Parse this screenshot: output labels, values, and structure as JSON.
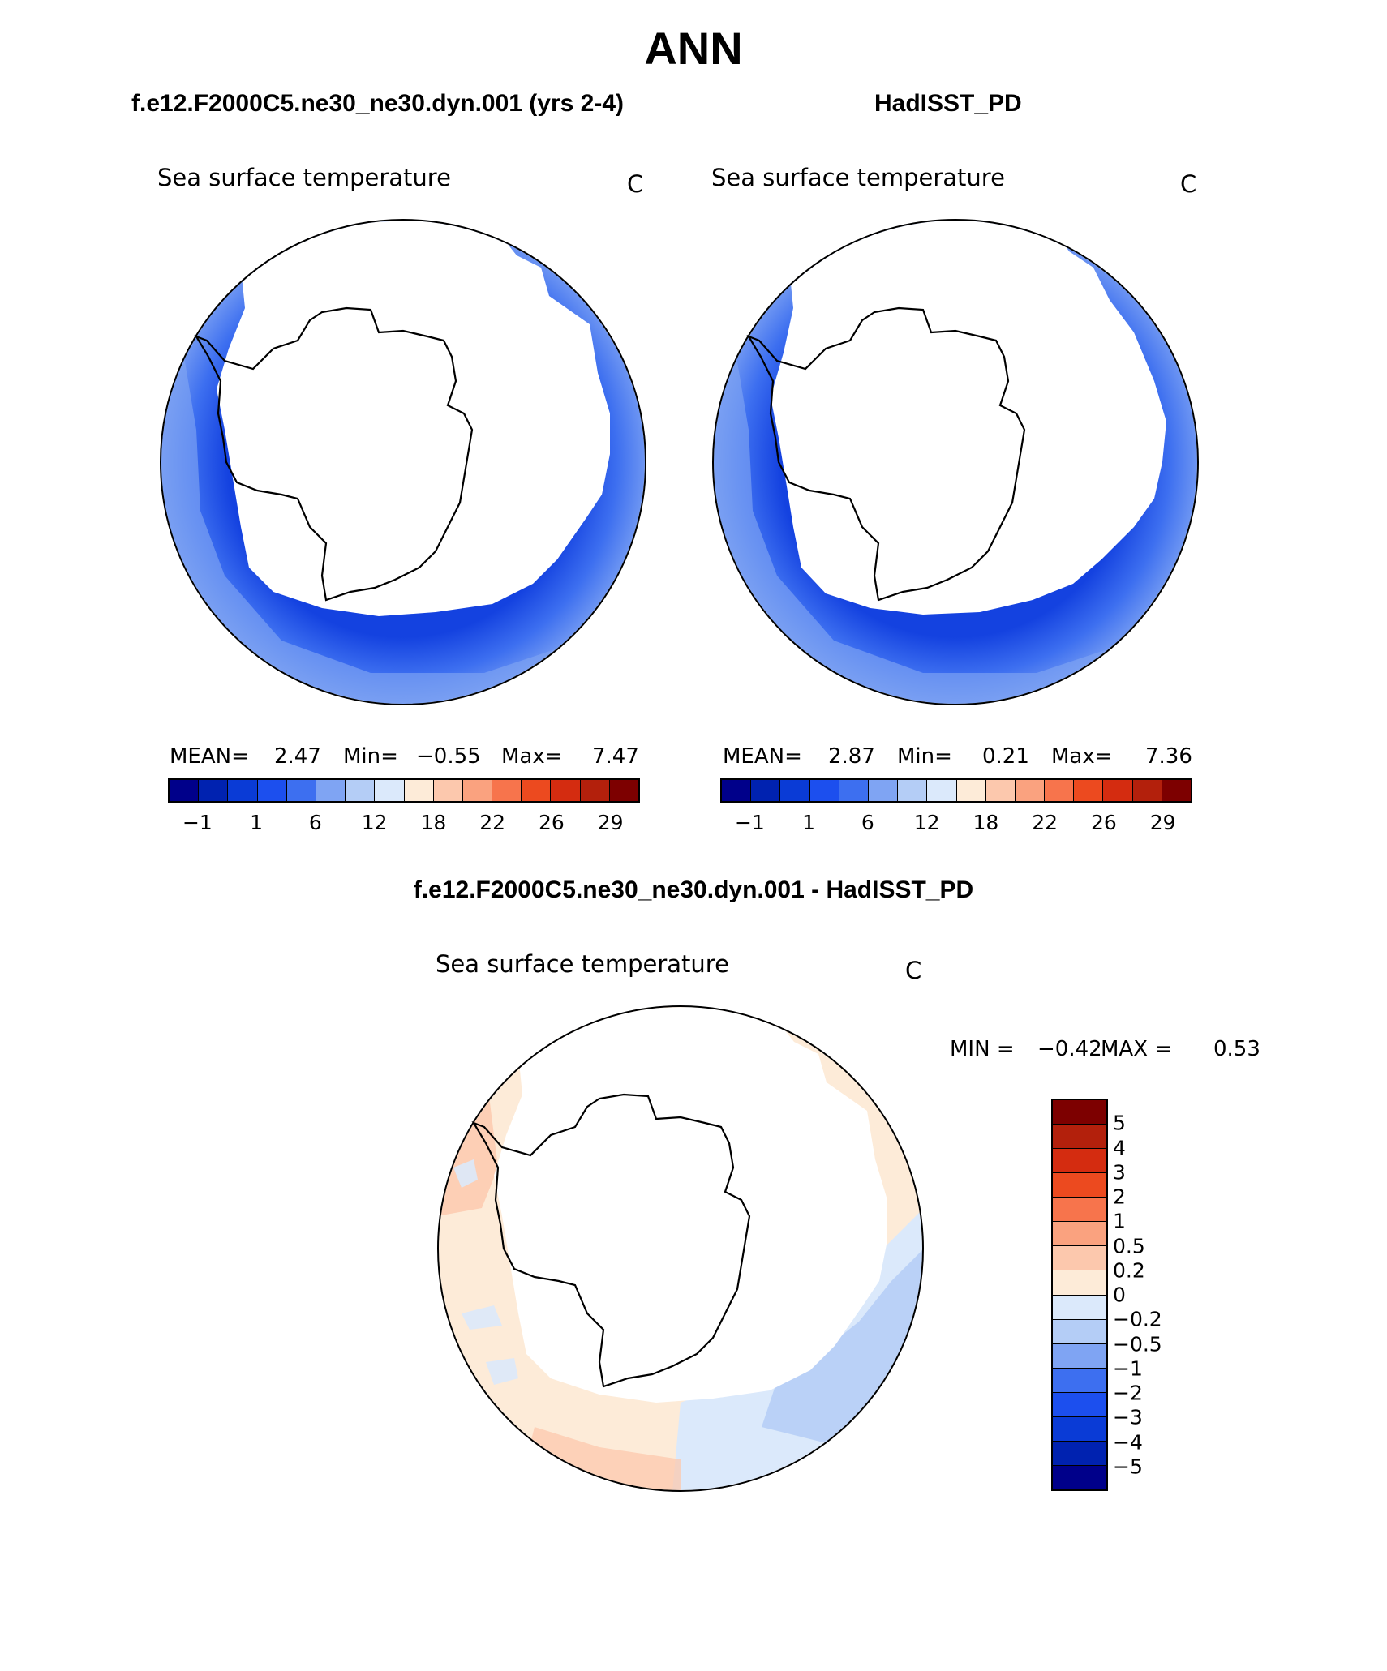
{
  "figure": {
    "title": "ANN"
  },
  "panels": [
    {
      "case_title": "f.e12.F2000C5.ne30_ne30.dyn.001 (yrs 2-4)",
      "label": "Sea surface temperature",
      "units": "C",
      "stats": {
        "mean_label": "MEAN=",
        "mean": "2.47",
        "min_label": "Min=",
        "min": "−0.55",
        "max_label": "Max=",
        "max": "7.47"
      }
    },
    {
      "case_title": "HadISST_PD",
      "label": "Sea surface temperature",
      "units": "C",
      "stats": {
        "mean_label": "MEAN=",
        "mean": "2.87",
        "min_label": "Min=",
        "min": "0.21",
        "max_label": "Max=",
        "max": "7.36"
      }
    }
  ],
  "diff_panel": {
    "case_title": "f.e12.F2000C5.ne30_ne30.dyn.001 - HadISST_PD",
    "label": "Sea surface temperature",
    "units": "C",
    "stats": {
      "min_label": "MIN =",
      "min": "−0.42",
      "max_label": "MAX =",
      "max": "0.53"
    }
  },
  "colorbars": {
    "main": {
      "colors": [
        "#00008a",
        "#0022b0",
        "#0a3bd6",
        "#1c4fee",
        "#3d6ff0",
        "#7fa4f3",
        "#b4cdf6",
        "#dbe9fb",
        "#fdebd8",
        "#fcc8ad",
        "#faa27f",
        "#f7744c",
        "#ec4a1f",
        "#d42c10",
        "#b3200c",
        "#7d0000"
      ],
      "tick_labels": [
        "−1",
        "1",
        "6",
        "12",
        "18",
        "22",
        "26",
        "29"
      ]
    },
    "diff": {
      "colors": [
        "#7d0000",
        "#b3200c",
        "#d42c10",
        "#ec4a1f",
        "#f7744c",
        "#faa27f",
        "#fcc8ad",
        "#fdebd8",
        "#dbe9fb",
        "#b4cdf6",
        "#7fa4f3",
        "#3d6ff0",
        "#1c4fee",
        "#0a3bd6",
        "#0022b0",
        "#00008a"
      ],
      "tick_labels": [
        "5",
        "4",
        "3",
        "2",
        "1",
        "0.5",
        "0.2",
        "0",
        "−0.2",
        "−0.5",
        "−1",
        "−2",
        "−3",
        "−4",
        "−5"
      ]
    }
  },
  "map_colors": {
    "ocean_cold": "#1c4fee",
    "ocean_mid": "#3d6ff0",
    "ocean_warm": "#7fa4f3",
    "diff_positive": "#fdebd8",
    "diff_positive_strong": "#fcc8ad",
    "diff_negative": "#dbe9fb",
    "diff_negative_strong": "#b4cdf6"
  }
}
